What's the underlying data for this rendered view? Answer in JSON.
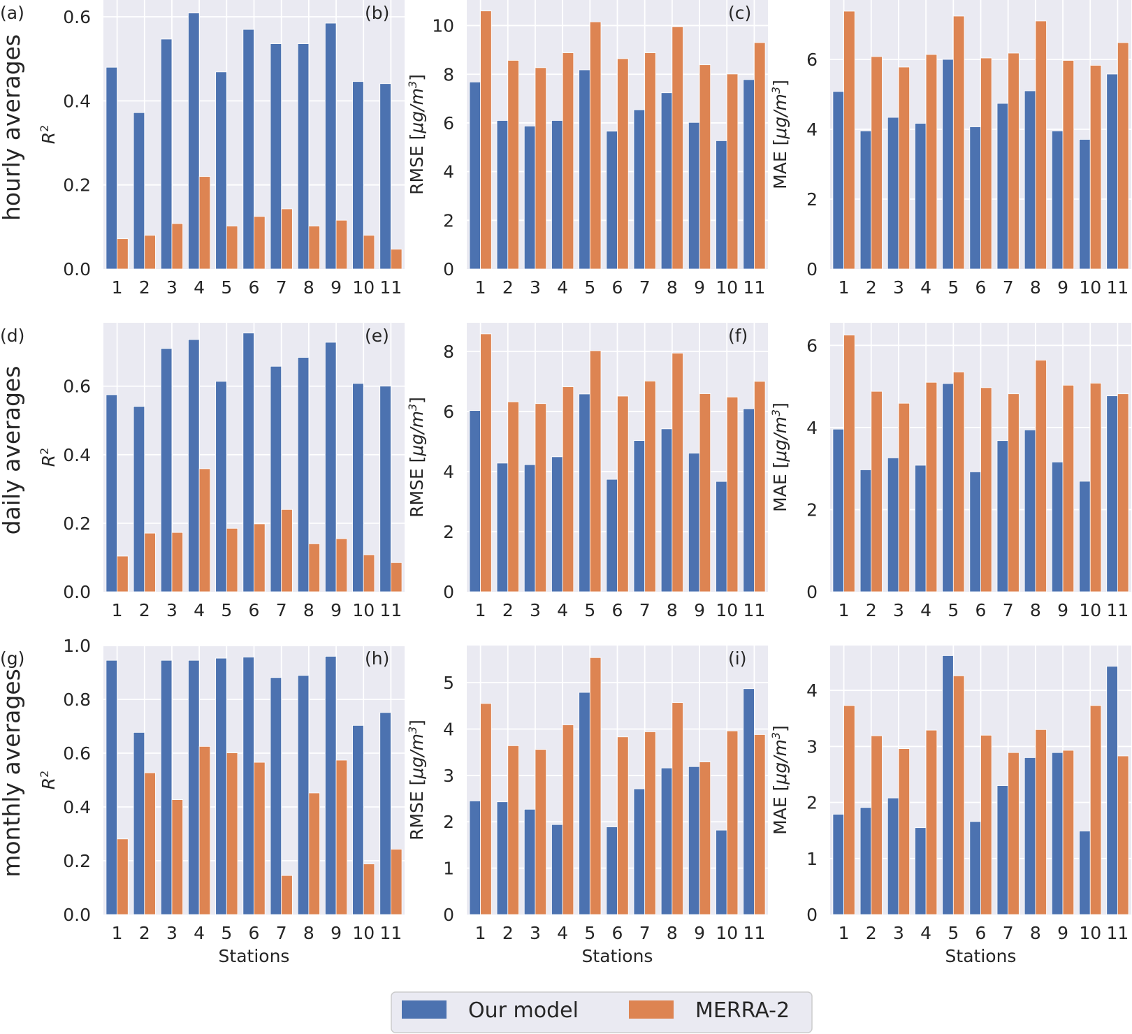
{
  "colors": {
    "model": "#4c72b0",
    "merra": "#dd8452",
    "plot_bg": "#eaeaf2",
    "grid": "#ffffff",
    "text": "#262626"
  },
  "legend": {
    "model": "Our model",
    "merra": "MERRA-2"
  },
  "row_labels": [
    "hourly averages",
    "daily averages",
    "monthly averages"
  ],
  "chart_data": [
    {
      "type": "bar",
      "panel": "(a)",
      "row": 0,
      "col": 0,
      "ylabel": "R",
      "ylabel_sup": "2",
      "xlabel": "",
      "categories": [
        "1",
        "2",
        "3",
        "4",
        "5",
        "6",
        "7",
        "8",
        "9",
        "10",
        "11"
      ],
      "ylim": [
        0,
        0.64
      ],
      "yticks": [
        0.0,
        0.2,
        0.4,
        0.6
      ],
      "tick_labels": [
        "0.0",
        "0.2",
        "0.4",
        "0.6"
      ],
      "series": [
        {
          "name": "Our model",
          "values": [
            0.48,
            0.372,
            0.547,
            0.609,
            0.469,
            0.57,
            0.536,
            0.536,
            0.585,
            0.446,
            0.441
          ]
        },
        {
          "name": "MERRA-2",
          "values": [
            0.072,
            0.08,
            0.108,
            0.22,
            0.102,
            0.125,
            0.143,
            0.102,
            0.116,
            0.08,
            0.047
          ]
        }
      ]
    },
    {
      "type": "bar",
      "panel": "(b)",
      "row": 0,
      "col": 1,
      "ylabel": "RMSE [μg/m",
      "ylabel_sup": "3",
      "ylabel_close": "]",
      "xlabel": "",
      "categories": [
        "1",
        "2",
        "3",
        "4",
        "5",
        "6",
        "7",
        "8",
        "9",
        "10",
        "11"
      ],
      "ylim": [
        0,
        11.05
      ],
      "yticks": [
        0,
        2,
        4,
        6,
        8,
        10
      ],
      "tick_labels": [
        "0",
        "2",
        "4",
        "6",
        "8",
        "10"
      ],
      "series": [
        {
          "name": "Our model",
          "values": [
            7.68,
            6.1,
            5.87,
            6.1,
            8.18,
            5.66,
            6.54,
            7.24,
            6.02,
            5.27,
            7.78
          ]
        },
        {
          "name": "MERRA-2",
          "values": [
            10.6,
            8.57,
            8.27,
            8.88,
            10.15,
            8.64,
            8.88,
            9.95,
            8.39,
            8.01,
            9.3
          ]
        }
      ]
    },
    {
      "type": "bar",
      "panel": "(c)",
      "row": 0,
      "col": 2,
      "ylabel": "MAE [μg/m",
      "ylabel_sup": "3",
      "ylabel_close": "]",
      "xlabel": "",
      "categories": [
        "1",
        "2",
        "3",
        "4",
        "5",
        "6",
        "7",
        "8",
        "9",
        "10",
        "11"
      ],
      "ylim": [
        0,
        7.7
      ],
      "yticks": [
        0,
        2,
        4,
        6
      ],
      "tick_labels": [
        "0",
        "2",
        "4",
        "6"
      ],
      "series": [
        {
          "name": "Our model",
          "values": [
            5.08,
            3.95,
            4.34,
            4.17,
            6.0,
            4.07,
            4.74,
            5.1,
            3.95,
            3.71,
            5.58
          ]
        },
        {
          "name": "MERRA-2",
          "values": [
            7.38,
            6.08,
            5.78,
            6.14,
            7.24,
            6.04,
            6.18,
            7.1,
            5.97,
            5.83,
            6.48
          ]
        }
      ]
    },
    {
      "type": "bar",
      "panel": "(d)",
      "row": 1,
      "col": 0,
      "ylabel": "R",
      "ylabel_sup": "2",
      "xlabel": "",
      "categories": [
        "1",
        "2",
        "3",
        "4",
        "5",
        "6",
        "7",
        "8",
        "9",
        "10",
        "11"
      ],
      "ylim": [
        0,
        0.785
      ],
      "yticks": [
        0.0,
        0.2,
        0.4,
        0.6
      ],
      "tick_labels": [
        "0.0",
        "0.2",
        "0.4",
        "0.6"
      ],
      "series": [
        {
          "name": "Our model",
          "values": [
            0.575,
            0.541,
            0.71,
            0.736,
            0.614,
            0.755,
            0.658,
            0.684,
            0.728,
            0.608,
            0.6
          ]
        },
        {
          "name": "MERRA-2",
          "values": [
            0.104,
            0.171,
            0.173,
            0.359,
            0.185,
            0.198,
            0.24,
            0.14,
            0.155,
            0.108,
            0.085
          ]
        }
      ]
    },
    {
      "type": "bar",
      "panel": "(e)",
      "row": 1,
      "col": 1,
      "ylabel": "RMSE [μg/m",
      "ylabel_sup": "3",
      "ylabel_close": "]",
      "xlabel": "",
      "categories": [
        "1",
        "2",
        "3",
        "4",
        "5",
        "6",
        "7",
        "8",
        "9",
        "10",
        "11"
      ],
      "ylim": [
        0,
        8.95
      ],
      "yticks": [
        0,
        2,
        4,
        6,
        8
      ],
      "tick_labels": [
        "0",
        "2",
        "4",
        "6",
        "8"
      ],
      "series": [
        {
          "name": "Our model",
          "values": [
            6.03,
            4.28,
            4.23,
            4.49,
            6.58,
            3.74,
            5.03,
            5.42,
            4.61,
            3.67,
            6.09
          ]
        },
        {
          "name": "MERRA-2",
          "values": [
            8.58,
            6.32,
            6.26,
            6.82,
            8.02,
            6.51,
            7.01,
            7.94,
            6.59,
            6.48,
            7.0
          ]
        }
      ]
    },
    {
      "type": "bar",
      "panel": "(f)",
      "row": 1,
      "col": 2,
      "ylabel": "MAE [μg/m",
      "ylabel_sup": "3",
      "ylabel_close": "]",
      "xlabel": "",
      "categories": [
        "1",
        "2",
        "3",
        "4",
        "5",
        "6",
        "7",
        "8",
        "9",
        "10",
        "11"
      ],
      "ylim": [
        0,
        6.55
      ],
      "yticks": [
        0,
        2,
        4,
        6
      ],
      "tick_labels": [
        "0",
        "2",
        "4",
        "6"
      ],
      "series": [
        {
          "name": "Our model",
          "values": [
            3.96,
            2.97,
            3.26,
            3.08,
            5.07,
            2.92,
            3.68,
            3.94,
            3.16,
            2.69,
            4.77
          ]
        },
        {
          "name": "MERRA-2",
          "values": [
            6.25,
            4.88,
            4.59,
            5.1,
            5.35,
            4.97,
            4.82,
            5.64,
            5.03,
            5.08,
            4.82
          ]
        }
      ]
    },
    {
      "type": "bar",
      "panel": "(g)",
      "row": 2,
      "col": 0,
      "ylabel": "R",
      "ylabel_sup": "2",
      "xlabel": "Stations",
      "categories": [
        "1",
        "2",
        "3",
        "4",
        "5",
        "6",
        "7",
        "8",
        "9",
        "10",
        "11"
      ],
      "ylim": [
        0,
        1.0
      ],
      "yticks": [
        0.0,
        0.2,
        0.4,
        0.6,
        0.8,
        1.0
      ],
      "tick_labels": [
        "0.0",
        "0.2",
        "0.4",
        "0.6",
        "0.8",
        "1.0"
      ],
      "series": [
        {
          "name": "Our model",
          "values": [
            0.945,
            0.677,
            0.945,
            0.945,
            0.953,
            0.957,
            0.881,
            0.889,
            0.96,
            0.703,
            0.751
          ]
        },
        {
          "name": "MERRA-2",
          "values": [
            0.281,
            0.527,
            0.427,
            0.625,
            0.601,
            0.566,
            0.145,
            0.452,
            0.574,
            0.188,
            0.243
          ]
        }
      ]
    },
    {
      "type": "bar",
      "panel": "(h)",
      "row": 2,
      "col": 1,
      "ylabel": "RMSE [μg/m",
      "ylabel_sup": "3",
      "ylabel_close": "]",
      "xlabel": "Stations",
      "categories": [
        "1",
        "2",
        "3",
        "4",
        "5",
        "6",
        "7",
        "8",
        "9",
        "10",
        "11"
      ],
      "ylim": [
        0,
        5.8
      ],
      "yticks": [
        0,
        1,
        2,
        3,
        4,
        5
      ],
      "tick_labels": [
        "0",
        "1",
        "2",
        "3",
        "4",
        "5"
      ],
      "series": [
        {
          "name": "Our model",
          "values": [
            2.45,
            2.43,
            2.27,
            1.94,
            4.79,
            1.89,
            2.71,
            3.16,
            3.19,
            1.82,
            4.87
          ]
        },
        {
          "name": "MERRA-2",
          "values": [
            4.55,
            3.64,
            3.56,
            4.09,
            5.54,
            3.83,
            3.94,
            4.57,
            3.29,
            3.96,
            3.88
          ]
        }
      ]
    },
    {
      "type": "bar",
      "panel": "(i)",
      "row": 2,
      "col": 2,
      "ylabel": "MAE [μg/m",
      "ylabel_sup": "3",
      "ylabel_close": "]",
      "xlabel": "Stations",
      "categories": [
        "1",
        "2",
        "3",
        "4",
        "5",
        "6",
        "7",
        "8",
        "9",
        "10",
        "11"
      ],
      "ylim": [
        0,
        4.8
      ],
      "yticks": [
        0,
        1,
        2,
        3,
        4
      ],
      "tick_labels": [
        "0",
        "1",
        "2",
        "3",
        "4"
      ],
      "series": [
        {
          "name": "Our model",
          "values": [
            1.79,
            1.91,
            2.08,
            1.55,
            4.62,
            1.66,
            2.3,
            2.8,
            2.89,
            1.49,
            4.43
          ]
        },
        {
          "name": "MERRA-2",
          "values": [
            3.73,
            3.19,
            2.96,
            3.29,
            4.26,
            3.2,
            2.89,
            3.3,
            2.93,
            3.73,
            2.83
          ]
        }
      ]
    }
  ]
}
